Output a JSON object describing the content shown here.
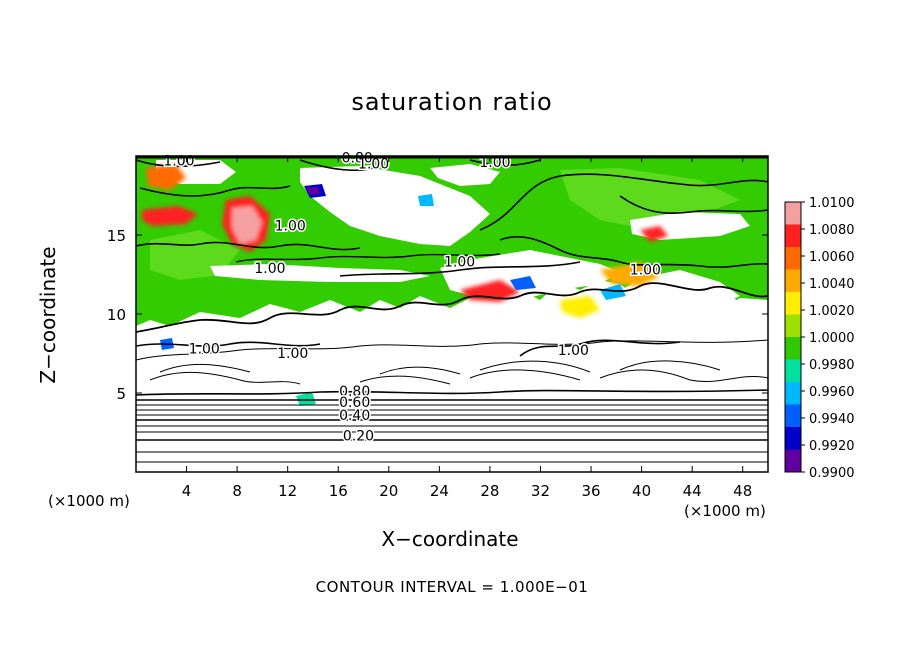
{
  "chart_data": {
    "type": "heatmap",
    "title": "saturation ratio",
    "xlabel": "X−coordinate",
    "ylabel": "Z−coordinate",
    "x_unit": "(×1000 m)",
    "z_unit": "(×1000 m)",
    "xlim": [
      0,
      50
    ],
    "ylim": [
      0,
      20
    ],
    "x_ticks": [
      4,
      8,
      12,
      16,
      20,
      24,
      28,
      32,
      36,
      40,
      44,
      48
    ],
    "y_ticks": [
      5,
      10,
      15
    ],
    "colorbar": {
      "labels": [
        "1.0100",
        "1.0080",
        "1.0060",
        "1.0040",
        "1.0020",
        "1.0000",
        "0.9980",
        "0.9960",
        "0.9940",
        "0.9920",
        "0.9900"
      ],
      "colors": [
        "#f4a0a0",
        "#ff2020",
        "#ff6a00",
        "#ffaa00",
        "#ffee00",
        "#a0e000",
        "#30c800",
        "#00e0a0",
        "#00b8ff",
        "#0060ff",
        "#0000c8",
        "#6000a0"
      ]
    },
    "contour_labels": [
      {
        "text": "1.00",
        "x": 3.4,
        "z": 19.4
      },
      {
        "text": "0.80",
        "x": 17.5,
        "z": 19.6
      },
      {
        "text": "1.00",
        "x": 18.8,
        "z": 19.2
      },
      {
        "text": "1.00",
        "x": 28.4,
        "z": 19.3
      },
      {
        "text": "1.00",
        "x": 12.2,
        "z": 15.3
      },
      {
        "text": "1.00",
        "x": 10.6,
        "z": 12.6
      },
      {
        "text": "1.00",
        "x": 25.6,
        "z": 13.0
      },
      {
        "text": "1.00",
        "x": 40.3,
        "z": 12.5
      },
      {
        "text": "1.00",
        "x": 5.4,
        "z": 7.5
      },
      {
        "text": "1.00",
        "x": 12.4,
        "z": 7.2
      },
      {
        "text": "1.00",
        "x": 34.6,
        "z": 7.4
      },
      {
        "text": "0.80",
        "x": 17.3,
        "z": 4.8
      },
      {
        "text": "0.60",
        "x": 17.3,
        "z": 4.1
      },
      {
        "text": "0.40",
        "x": 17.3,
        "z": 3.3
      },
      {
        "text": "0.20",
        "x": 17.6,
        "z": 2.0
      }
    ],
    "contour_interval_text": "CONTOUR INTERVAL =  1.000E−01",
    "grid": false,
    "legend_placement": "right"
  }
}
